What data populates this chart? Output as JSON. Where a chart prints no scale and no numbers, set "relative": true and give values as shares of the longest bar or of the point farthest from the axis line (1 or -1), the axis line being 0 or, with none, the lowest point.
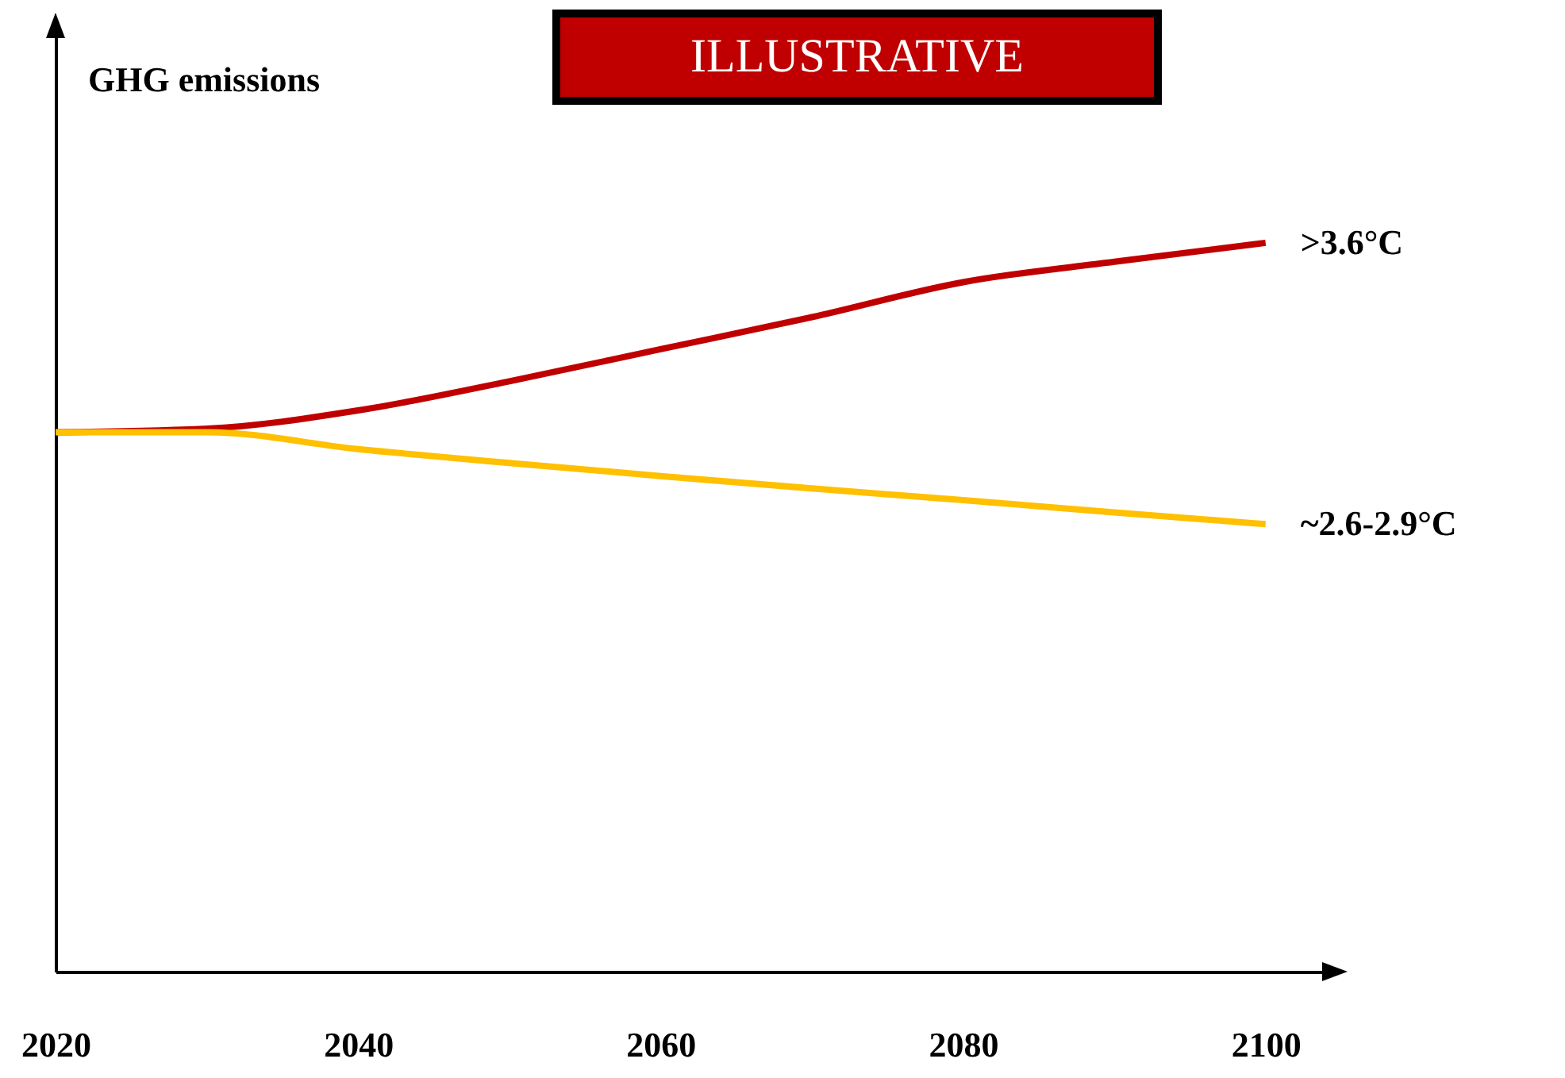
{
  "chart_data": {
    "type": "line",
    "relative": true,
    "ylabel": "GHG emissions",
    "annotations": [
      "ILLUSTRATIVE"
    ],
    "x": [
      2020,
      2030,
      2040,
      2050,
      2060,
      2070,
      2080,
      2090,
      2100
    ],
    "xlim": [
      2020,
      2105
    ],
    "xticks": [
      2020,
      2040,
      2060,
      2080,
      2100
    ],
    "grid": false,
    "marker": "none",
    "line_style": "solid",
    "series": [
      {
        "name": ">3.6°C",
        "color": "#c00000",
        "values": [
          0.74,
          0.745,
          0.77,
          0.81,
          0.854,
          0.898,
          0.946,
          0.974,
          1.0
        ]
      },
      {
        "name": "~2.6-2.9°C",
        "color": "#ffc000",
        "values": [
          0.74,
          0.74,
          0.717,
          0.698,
          0.68,
          0.663,
          0.647,
          0.63,
          0.614
        ]
      }
    ]
  }
}
